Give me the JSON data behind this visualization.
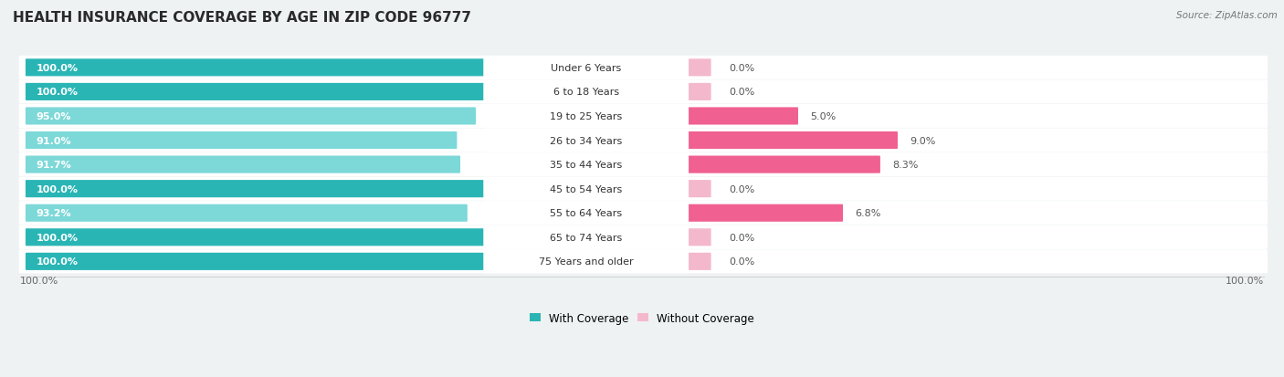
{
  "title": "HEALTH INSURANCE COVERAGE BY AGE IN ZIP CODE 96777",
  "source": "Source: ZipAtlas.com",
  "categories": [
    "Under 6 Years",
    "6 to 18 Years",
    "19 to 25 Years",
    "26 to 34 Years",
    "35 to 44 Years",
    "45 to 54 Years",
    "55 to 64 Years",
    "65 to 74 Years",
    "75 Years and older"
  ],
  "with_coverage": [
    100.0,
    100.0,
    95.0,
    91.0,
    91.7,
    100.0,
    93.2,
    100.0,
    100.0
  ],
  "without_coverage": [
    0.0,
    0.0,
    5.0,
    9.0,
    8.3,
    0.0,
    6.8,
    0.0,
    0.0
  ],
  "color_with_dark": "#2ab5b5",
  "color_with_light": "#7dd8d8",
  "color_without_dark": "#f06090",
  "color_without_light": "#f4b8cc",
  "bg_color": "#eef2f2",
  "row_bg": "#ffffff",
  "title_fontsize": 11,
  "bar_label_fontsize": 8,
  "cat_label_fontsize": 8,
  "value_label_fontsize": 8,
  "tick_fontsize": 8,
  "legend_fontsize": 8.5,
  "source_fontsize": 7.5,
  "figsize": [
    14.06,
    4.14
  ],
  "dpi": 100,
  "left_axis_pct": "100.0%",
  "right_axis_pct": "100.0%"
}
